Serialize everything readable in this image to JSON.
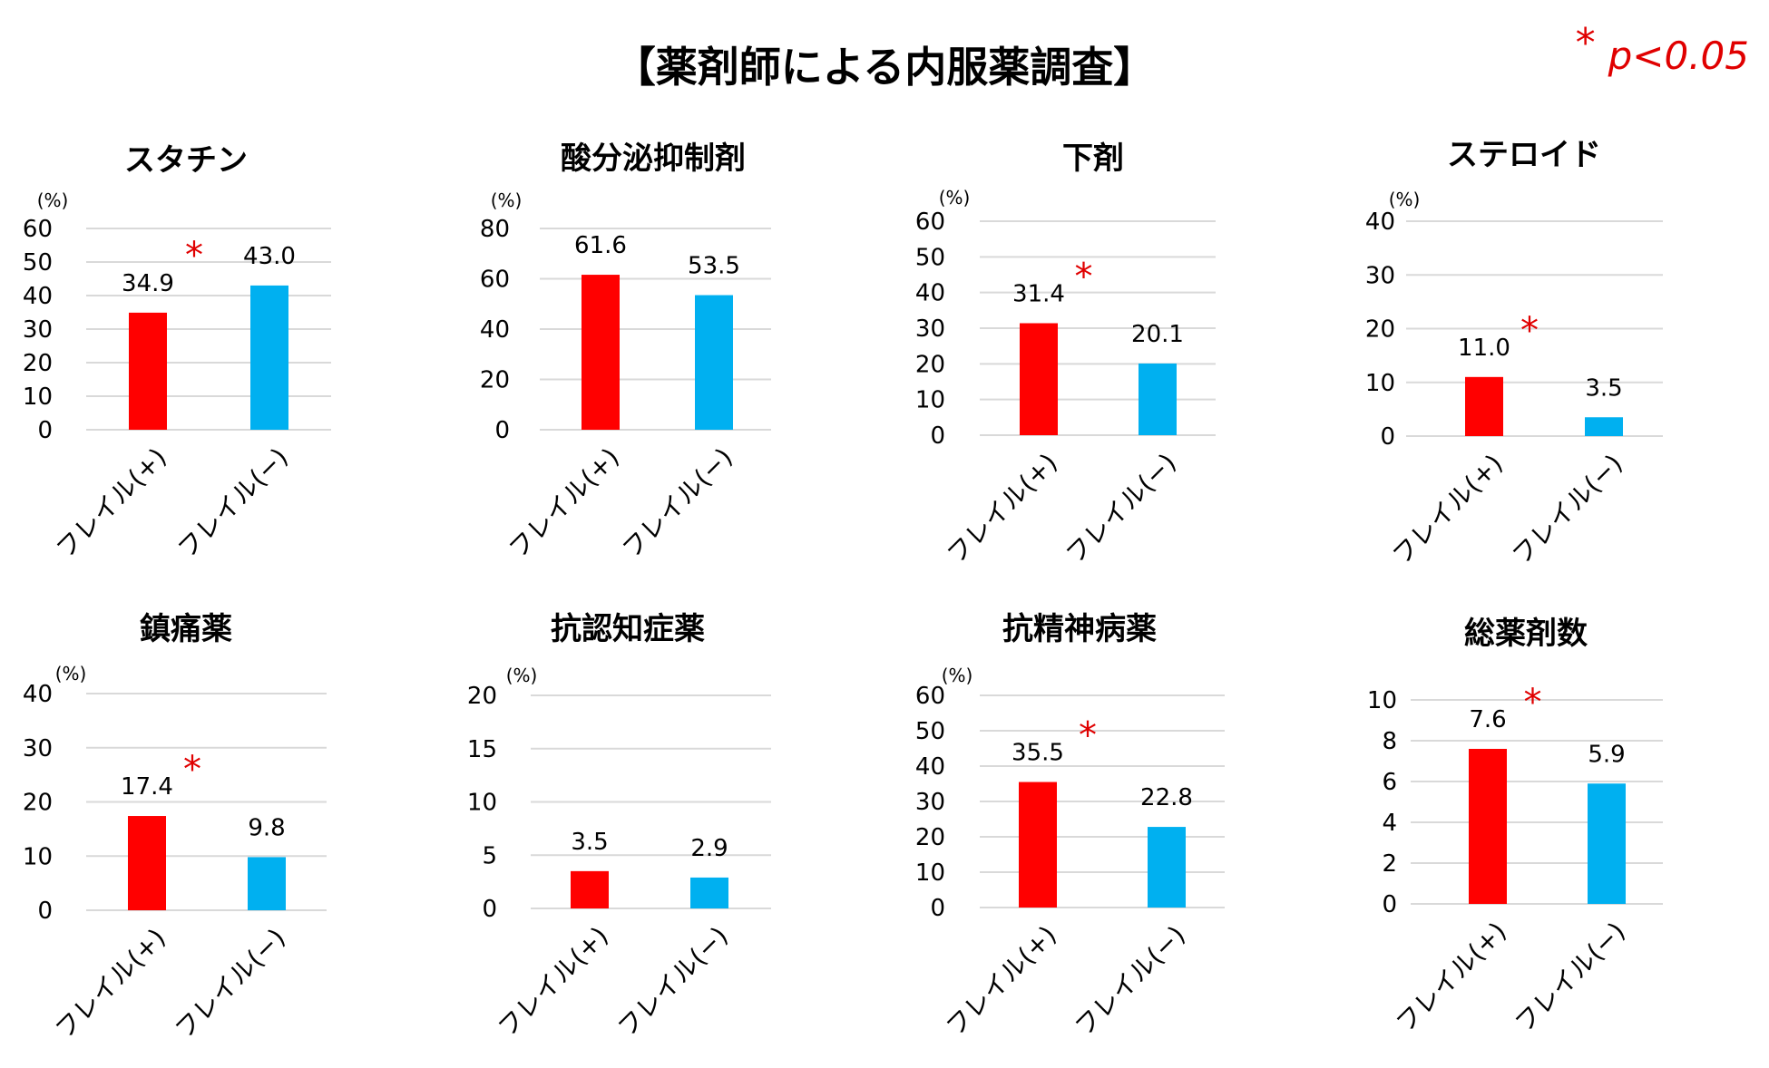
{
  "title": "【薬剤師による内服薬調査】",
  "significance_legend": {
    "symbol": "*",
    "text": "p<0.05",
    "color": "#e00000"
  },
  "colors": {
    "frail": "#ff0000",
    "nonfrail": "#00b0f0",
    "star": "#e00000",
    "grid": "#d9d9d9"
  },
  "chart_data": [
    {
      "type": "bar",
      "title": "スタチン",
      "unit": "(%)",
      "categories": [
        "フレイル(+)",
        "フレイル(−)"
      ],
      "values": [
        34.9,
        43.0
      ],
      "value_labels": [
        "34.9",
        "43.0"
      ],
      "yticks": [
        0,
        10,
        20,
        30,
        40,
        50,
        60
      ],
      "ylim": [
        0,
        60
      ],
      "significant": true,
      "grid": true
    },
    {
      "type": "bar",
      "title": "酸分泌抑制剤",
      "unit": "(%)",
      "categories": [
        "フレイル(+)",
        "フレイル(−)"
      ],
      "values": [
        61.6,
        53.5
      ],
      "value_labels": [
        "61.6",
        "53.5"
      ],
      "yticks": [
        0,
        20,
        40,
        60,
        80
      ],
      "ylim": [
        0,
        80
      ],
      "significant": false,
      "grid": true
    },
    {
      "type": "bar",
      "title": "下剤",
      "unit": "(%)",
      "categories": [
        "フレイル(+)",
        "フレイル(−)"
      ],
      "values": [
        31.4,
        20.1
      ],
      "value_labels": [
        "31.4",
        "20.1"
      ],
      "yticks": [
        0,
        10,
        20,
        30,
        40,
        50,
        60
      ],
      "ylim": [
        0,
        60
      ],
      "significant": true,
      "grid": true
    },
    {
      "type": "bar",
      "title": "ステロイド",
      "unit": "(%)",
      "categories": [
        "フレイル(+)",
        "フレイル(−)"
      ],
      "values": [
        11.0,
        3.5
      ],
      "value_labels": [
        "11.0",
        "3.5"
      ],
      "yticks": [
        0,
        10,
        20,
        30,
        40
      ],
      "ylim": [
        0,
        40
      ],
      "significant": true,
      "grid": true
    },
    {
      "type": "bar",
      "title": "鎮痛薬",
      "unit": "(%)",
      "categories": [
        "フレイル(+)",
        "フレイル(−)"
      ],
      "values": [
        17.4,
        9.8
      ],
      "value_labels": [
        "17.4",
        "9.8"
      ],
      "yticks": [
        0,
        10,
        20,
        30,
        40
      ],
      "ylim": [
        0,
        40
      ],
      "significant": true,
      "grid": true
    },
    {
      "type": "bar",
      "title": "抗認知症薬",
      "unit": "(%)",
      "categories": [
        "フレイル(+)",
        "フレイル(−)"
      ],
      "values": [
        3.5,
        2.9
      ],
      "value_labels": [
        "3.5",
        "2.9"
      ],
      "yticks": [
        0,
        5,
        10,
        15,
        20
      ],
      "ylim": [
        0,
        20
      ],
      "significant": false,
      "grid": true
    },
    {
      "type": "bar",
      "title": "抗精神病薬",
      "unit": "(%)",
      "categories": [
        "フレイル(+)",
        "フレイル(−)"
      ],
      "values": [
        35.5,
        22.8
      ],
      "value_labels": [
        "35.5",
        "22.8"
      ],
      "yticks": [
        0,
        10,
        20,
        30,
        40,
        50,
        60
      ],
      "ylim": [
        0,
        60
      ],
      "significant": true,
      "grid": true
    },
    {
      "type": "bar",
      "title": "総薬剤数",
      "unit": "",
      "categories": [
        "フレイル(+)",
        "フレイル(−)"
      ],
      "values": [
        7.6,
        5.9
      ],
      "value_labels": [
        "7.6",
        "5.9"
      ],
      "yticks": [
        0,
        2,
        4,
        6,
        8,
        10
      ],
      "ylim": [
        0,
        10
      ],
      "significant": true,
      "grid": true
    }
  ]
}
